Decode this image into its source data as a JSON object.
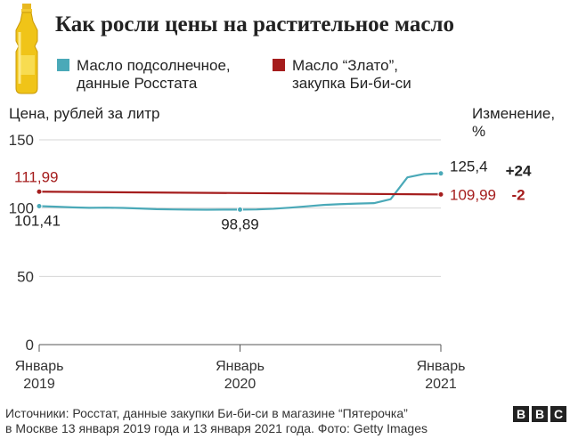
{
  "title": "Как росли цены на растительное масло",
  "legend": [
    {
      "line1": "Масло подсолнечное,",
      "line2": "данные Росстата",
      "color": "#4aa9b8"
    },
    {
      "line1": "Масло “Злато”,",
      "line2": "закупка Би-би-си",
      "color": "#a51d1d"
    }
  ],
  "y_axis_label": "Цена, рублей за литр",
  "change_header_line1": "Изменение,",
  "change_header_line2": "%",
  "source_line1": "Источники: Росстат, данные закупки Би-би-си в магазине “Пятерочка”",
  "source_line2": "в Москве 13 января 2019 года и 13 января 2021 года. Фото: Getty Images",
  "logo": [
    "B",
    "B",
    "C"
  ],
  "chart_data": {
    "type": "line",
    "ylim": [
      0,
      150
    ],
    "yticks": [
      0,
      50,
      100,
      150
    ],
    "xlim": [
      0,
      24
    ],
    "xticks": [
      {
        "x": 0,
        "line1": "Январь",
        "line2": "2019"
      },
      {
        "x": 12,
        "line1": "Январь",
        "line2": "2020"
      },
      {
        "x": 24,
        "line1": "Январь",
        "line2": "2021"
      }
    ],
    "grid": true,
    "series": [
      {
        "name": "Масло подсолнечное, данные Росстата",
        "color": "#4aa9b8",
        "x": [
          0,
          1,
          2,
          3,
          4,
          5,
          6,
          7,
          8,
          9,
          10,
          11,
          12,
          13,
          14,
          15,
          16,
          17,
          18,
          19,
          20,
          21,
          22,
          23,
          24
        ],
        "y": [
          101.41,
          101.0,
          100.5,
          100.2,
          100.3,
          100.1,
          99.7,
          99.2,
          99.0,
          98.9,
          98.8,
          98.9,
          98.89,
          99.0,
          99.5,
          100.3,
          101.3,
          102.3,
          102.9,
          103.3,
          103.6,
          106.5,
          122.5,
          125.0,
          125.4
        ],
        "labels": [
          {
            "x": 0,
            "text": "101,41"
          },
          {
            "x": 12,
            "text": "98,89"
          },
          {
            "x": 24,
            "text": "125,4"
          }
        ],
        "marked": [
          0,
          12,
          24
        ],
        "change": "+24"
      },
      {
        "name": "Масло “Злато”, закупка Би-би-си",
        "color": "#a51d1d",
        "x": [
          0,
          24
        ],
        "y": [
          111.99,
          109.99
        ],
        "labels": [
          {
            "x": 0,
            "text": "111,99"
          },
          {
            "x": 24,
            "text": "109,99"
          }
        ],
        "marked": [
          0,
          24
        ],
        "change": "-2"
      }
    ]
  }
}
